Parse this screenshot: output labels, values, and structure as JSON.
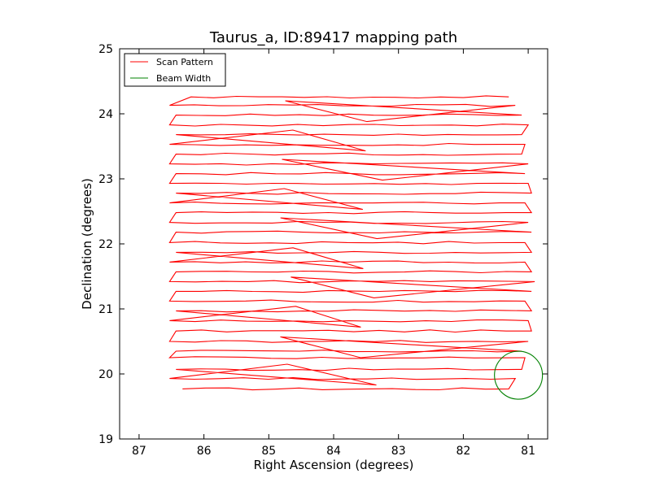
{
  "chart_data": {
    "type": "line",
    "title": "Taurus_a, ID:89417 mapping path",
    "xlabel": "Right Ascension (degrees)",
    "ylabel": "Declination (degrees)",
    "xlim": [
      87.3,
      80.7
    ],
    "ylim": [
      19,
      25
    ],
    "x_inverted": true,
    "xticks": [
      87,
      86,
      85,
      84,
      83,
      82,
      81
    ],
    "yticks": [
      19,
      20,
      21,
      22,
      23,
      24,
      25
    ],
    "grid": false,
    "legend": {
      "placement": "top-left",
      "entries": [
        "Scan Pattern",
        "Beam Width"
      ]
    },
    "series": [
      {
        "name": "Scan Pattern",
        "color": "#ff0000",
        "kind": "path",
        "decs": [
          19.77,
          19.93,
          20.07,
          20.25,
          20.35,
          20.5,
          20.66,
          20.82,
          20.97,
          21.12,
          21.27,
          21.42,
          21.57,
          21.72,
          21.87,
          22.02,
          22.18,
          22.33,
          22.48,
          22.63,
          22.78,
          22.93,
          23.08,
          23.23,
          23.38,
          23.53,
          23.68,
          23.83,
          23.98,
          24.13,
          24.26
        ],
        "ra_min": [
          86.33,
          86.53,
          86.43,
          86.53,
          86.43,
          86.53,
          86.43,
          86.53,
          86.43,
          86.53,
          86.43,
          86.53,
          86.43,
          86.53,
          86.43,
          86.53,
          86.43,
          86.53,
          86.43,
          86.53,
          86.43,
          86.53,
          86.43,
          86.53,
          86.43,
          86.53,
          86.43,
          86.53,
          86.43,
          86.53,
          86.2
        ],
        "ra_max": [
          81.3,
          81.2,
          81.1,
          81.05,
          81.1,
          81.0,
          80.95,
          81.0,
          80.95,
          81.05,
          80.95,
          80.9,
          80.95,
          81.05,
          80.95,
          81.05,
          80.95,
          81.0,
          80.95,
          81.05,
          80.95,
          81.0,
          81.05,
          81.0,
          81.1,
          81.05,
          81.1,
          81.0,
          81.1,
          81.2,
          81.3
        ]
      },
      {
        "name": "Beam Width",
        "color": "#008000",
        "kind": "circle",
        "center": [
          81.15,
          19.98
        ],
        "radius": 0.37
      }
    ]
  }
}
